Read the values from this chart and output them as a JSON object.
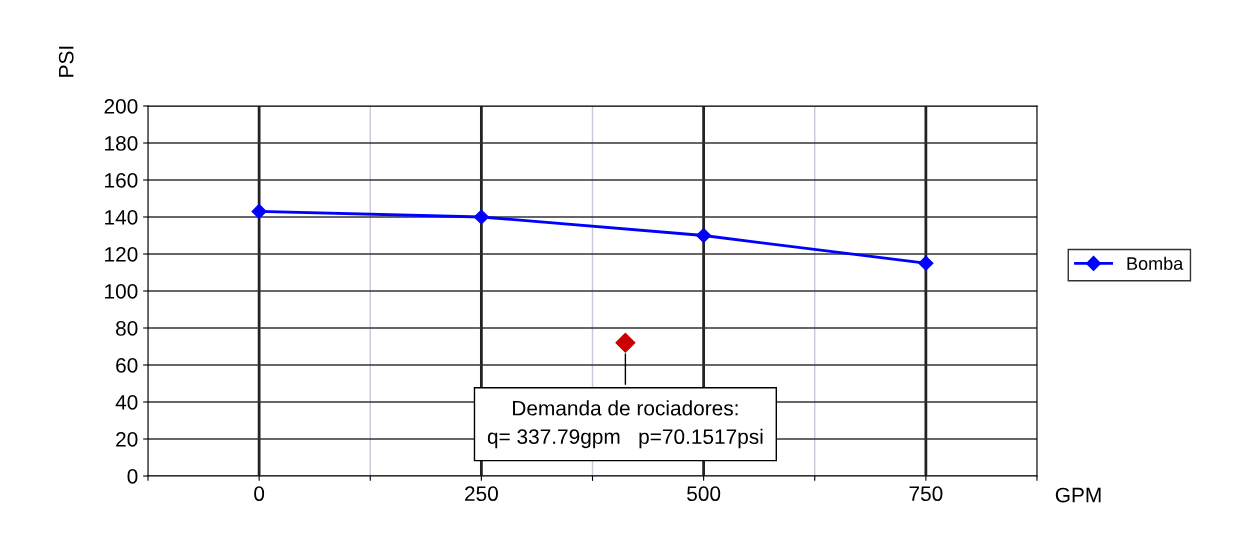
{
  "chart_data": {
    "type": "line",
    "xlabel": "GPM",
    "ylabel": "PSI",
    "series": [
      {
        "name": "Bomba",
        "color": "#0000ff",
        "x": [
          0,
          250,
          500,
          750
        ],
        "values": [
          143,
          140,
          130,
          115
        ],
        "marker": "diamond"
      },
      {
        "type": "scatter",
        "color": "#cc0000",
        "x": [
          412
        ],
        "values": [
          72
        ],
        "marker": "diamond"
      }
    ],
    "xlim": [
      -125,
      875
    ],
    "xticks": [
      {
        "value": -125,
        "label": null
      },
      0,
      {
        "value": 125,
        "label": null
      },
      250,
      {
        "value": 375,
        "label": null
      },
      500,
      {
        "value": 625,
        "label": null
      },
      750,
      {
        "value": 875,
        "label": null
      }
    ],
    "ylim": [
      0,
      200
    ],
    "yticks": [
      0,
      20,
      40,
      60,
      80,
      100,
      120,
      140,
      160,
      180,
      200
    ],
    "grid": true,
    "legend": "right",
    "annotations": [
      {
        "text": "Demanda de rociadores:\nq= 337.79gpm   p=70.1517psi",
        "x": 412,
        "y": 72
      }
    ]
  }
}
